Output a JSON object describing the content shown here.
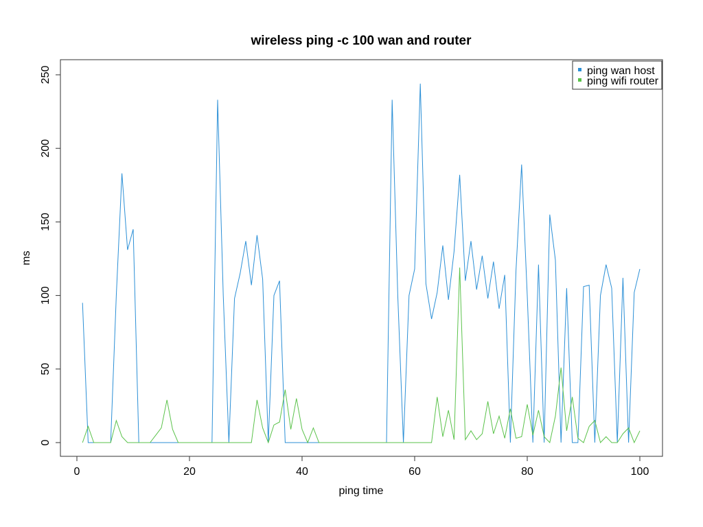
{
  "chart_data": {
    "type": "line",
    "title": "wireless ping -c 100 wan and router",
    "xlabel": "ping time",
    "ylabel": "ms",
    "xlim": [
      1,
      100
    ],
    "ylim": [
      0,
      250
    ],
    "xticks": [
      0,
      20,
      40,
      60,
      80,
      100
    ],
    "yticks": [
      0,
      50,
      100,
      150,
      200,
      250
    ],
    "grid": false,
    "legend_position": "top-right",
    "x": [
      1,
      2,
      3,
      4,
      5,
      6,
      7,
      8,
      9,
      10,
      11,
      12,
      13,
      14,
      15,
      16,
      17,
      18,
      19,
      20,
      21,
      22,
      23,
      24,
      25,
      26,
      27,
      28,
      29,
      30,
      31,
      32,
      33,
      34,
      35,
      36,
      37,
      38,
      39,
      40,
      41,
      42,
      43,
      44,
      45,
      46,
      47,
      48,
      49,
      50,
      51,
      52,
      53,
      54,
      55,
      56,
      57,
      58,
      59,
      60,
      61,
      62,
      63,
      64,
      65,
      66,
      67,
      68,
      69,
      70,
      71,
      72,
      73,
      74,
      75,
      76,
      77,
      78,
      79,
      80,
      81,
      82,
      83,
      84,
      85,
      86,
      87,
      88,
      89,
      90,
      91,
      92,
      93,
      94,
      95,
      96,
      97,
      98,
      99,
      100
    ],
    "series": [
      {
        "name": "ping wan host",
        "color": "#2b8fd6",
        "values": [
          95,
          0,
          0,
          0,
          0,
          0,
          100,
          183,
          131,
          145,
          0,
          0,
          0,
          0,
          0,
          0,
          0,
          0,
          0,
          0,
          0,
          0,
          0,
          0,
          233,
          100,
          0,
          98,
          115,
          137,
          107,
          141,
          111,
          0,
          100,
          110,
          0,
          0,
          0,
          0,
          0,
          0,
          0,
          0,
          0,
          0,
          0,
          0,
          0,
          0,
          0,
          0,
          0,
          0,
          0,
          233,
          100,
          0,
          100,
          118,
          244,
          108,
          84,
          102,
          134,
          97,
          130,
          182,
          110,
          137,
          104,
          127,
          98,
          123,
          91,
          114,
          0,
          117,
          189,
          100,
          0,
          121,
          0,
          155,
          124,
          0,
          105,
          0,
          0,
          106,
          107,
          0,
          100,
          121,
          105,
          0,
          112,
          0,
          102,
          118
        ]
      },
      {
        "name": "ping wifi router",
        "color": "#5ac24a",
        "values": [
          0,
          11,
          0,
          0,
          0,
          0,
          15,
          4,
          0,
          0,
          0,
          0,
          0,
          5,
          10,
          29,
          9,
          0,
          0,
          0,
          0,
          0,
          0,
          0,
          0,
          0,
          0,
          0,
          0,
          0,
          0,
          29,
          10,
          0,
          12,
          14,
          36,
          9,
          30,
          9,
          0,
          10,
          0,
          0,
          0,
          0,
          0,
          0,
          0,
          0,
          0,
          0,
          0,
          0,
          0,
          0,
          0,
          0,
          0,
          0,
          0,
          0,
          0,
          31,
          4,
          22,
          2,
          119,
          2,
          8,
          2,
          6,
          28,
          6,
          18,
          3,
          23,
          3,
          4,
          26,
          5,
          22,
          4,
          0,
          18,
          51,
          8,
          31,
          3,
          0,
          11,
          15,
          0,
          4,
          0,
          0,
          6,
          10,
          0,
          8
        ]
      }
    ]
  }
}
